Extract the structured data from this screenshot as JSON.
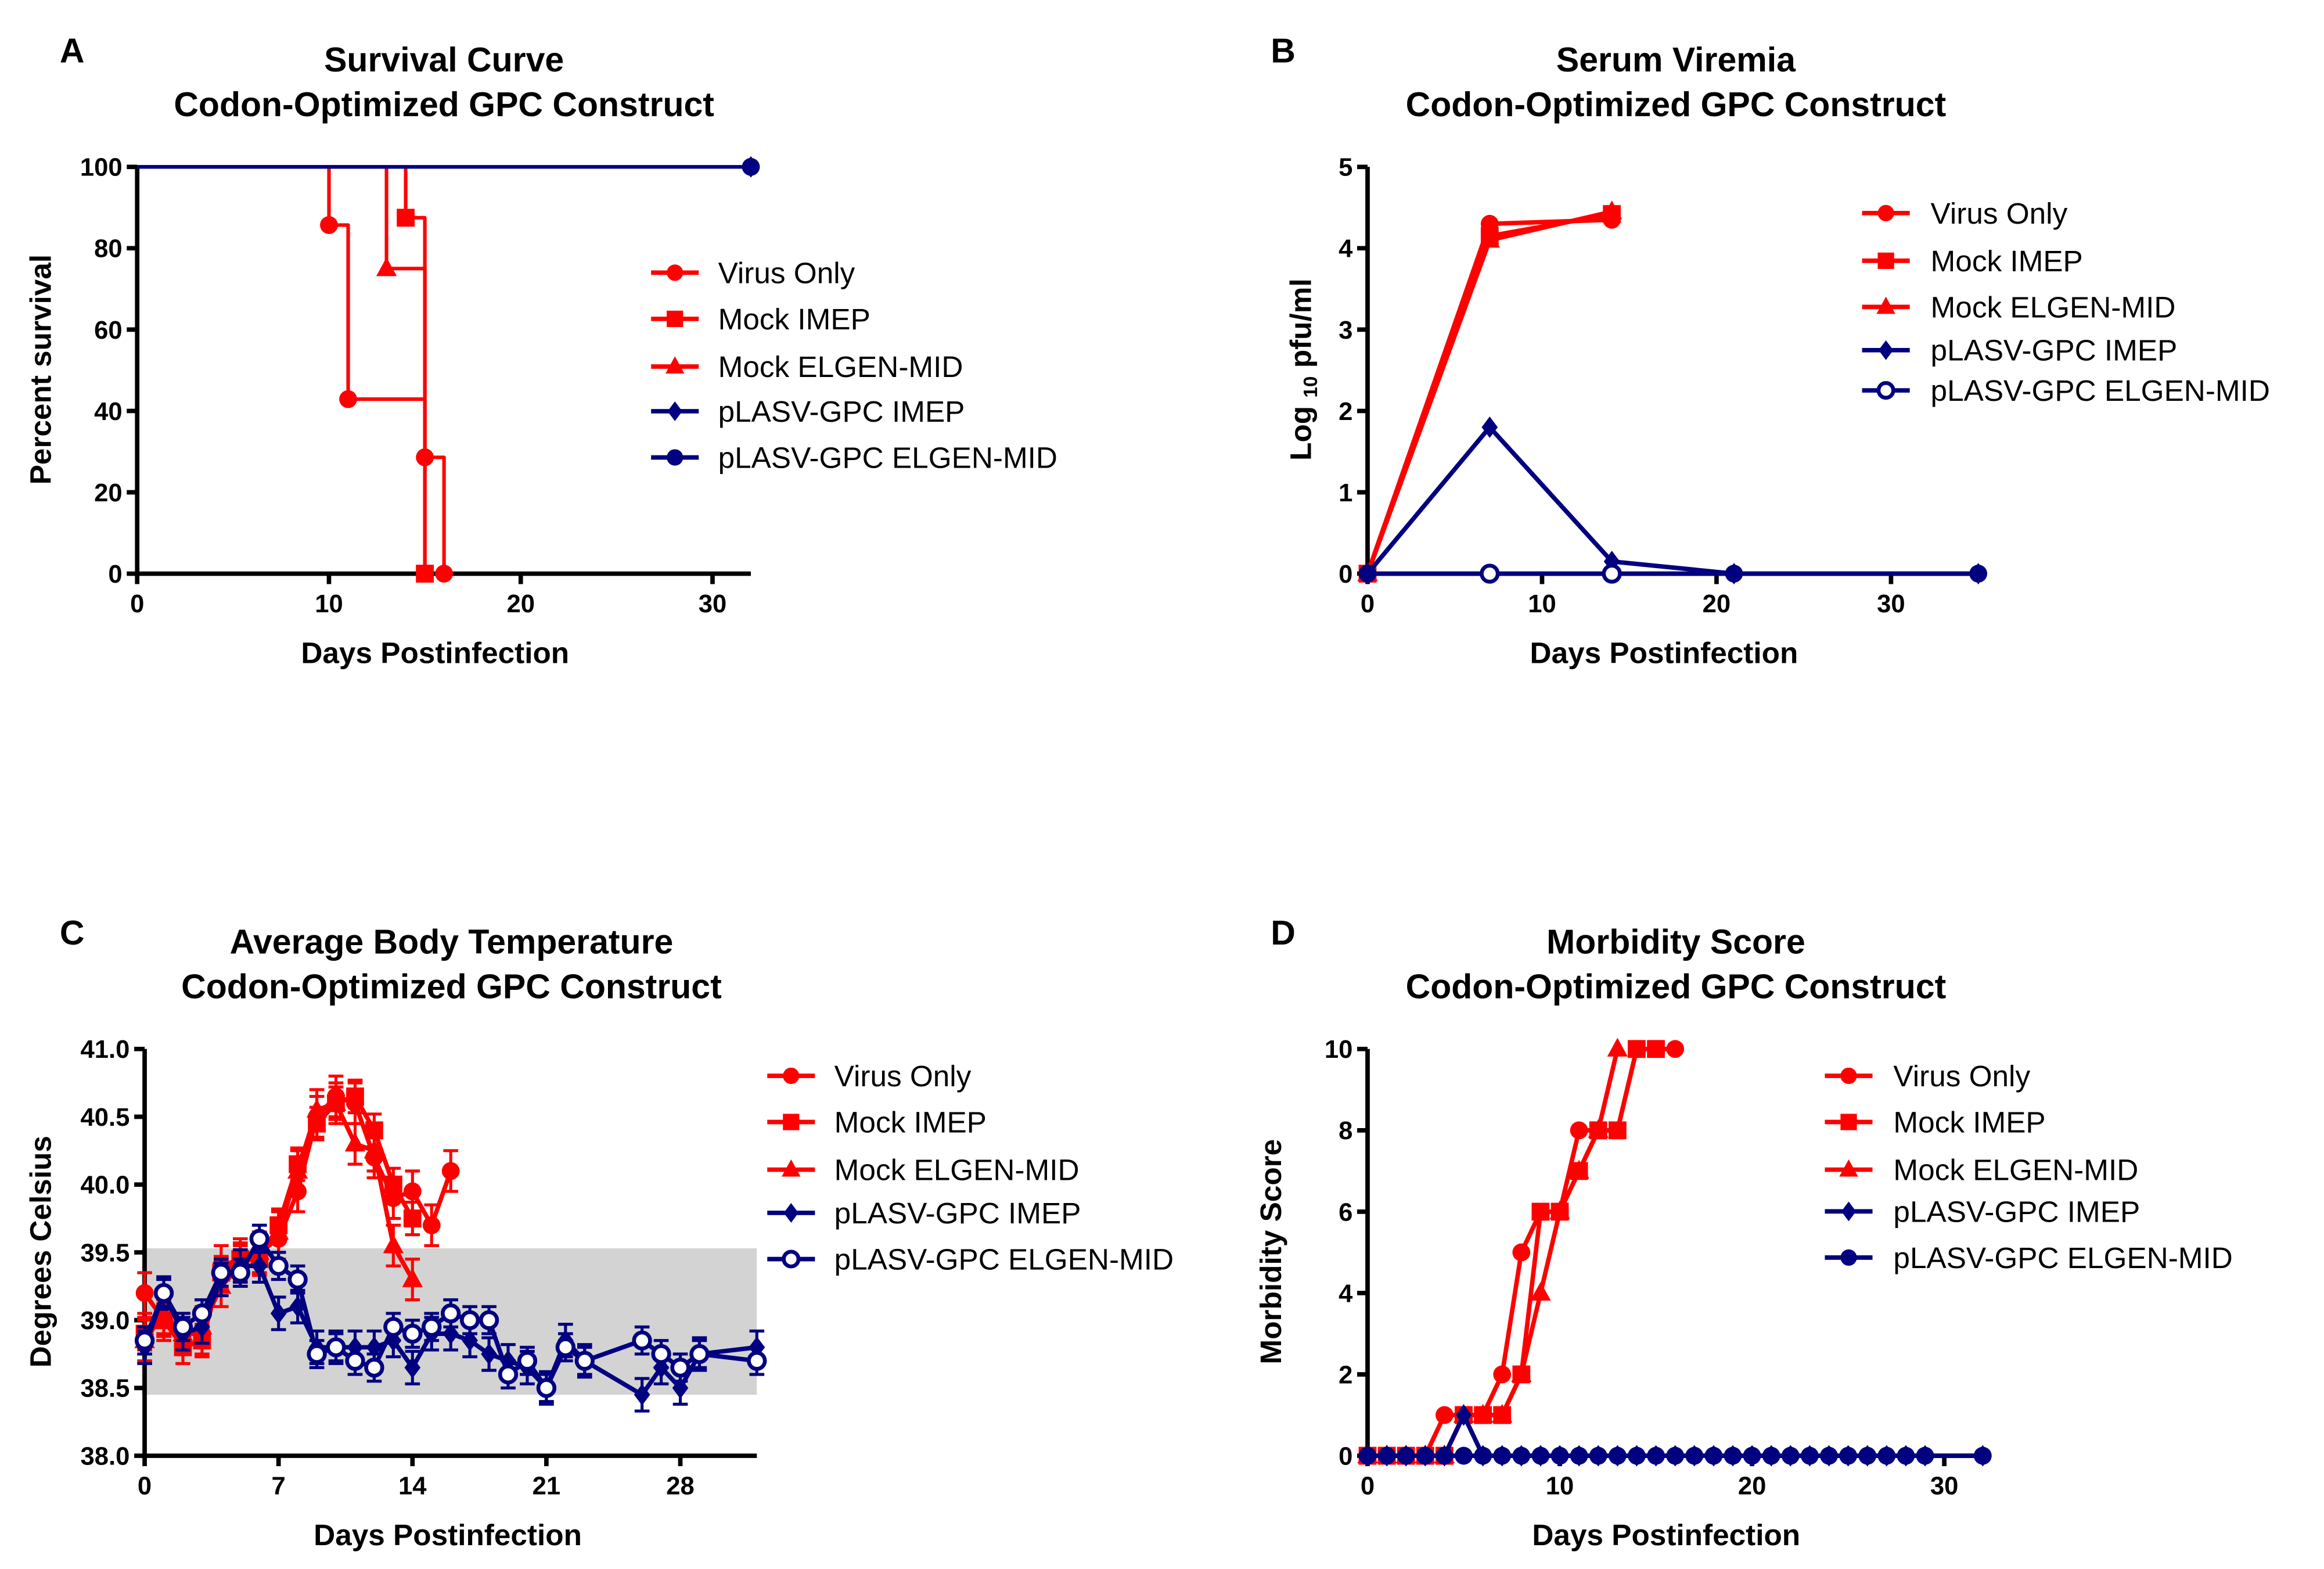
{
  "colors": {
    "red": "#ff0000",
    "navy": "#000080",
    "band": "#d3d3d3",
    "axis": "#000000"
  },
  "legend_labels": [
    "Virus Only",
    "Mock IMEP",
    "Mock ELGEN-MID",
    "pLASV-GPC IMEP",
    "pLASV-GPC ELGEN-MID"
  ],
  "chart_data": [
    {
      "panel": "A",
      "type": "line",
      "step": true,
      "title": [
        "Survival Curve",
        "Codon-Optimized GPC Construct"
      ],
      "xlabel": "Days Postinfection",
      "ylabel": "Percent survival",
      "xlim": [
        0,
        32
      ],
      "ylim": [
        0,
        100
      ],
      "xticks": [
        "0",
        "10",
        "20",
        "30"
      ],
      "xtick_values": [
        0,
        10,
        20,
        30
      ],
      "yticks": [
        "0",
        "20",
        "40",
        "60",
        "80",
        "100"
      ],
      "ytick_values": [
        0,
        20,
        40,
        60,
        80,
        100
      ],
      "legend": "right",
      "series": [
        {
          "name": "Virus Only",
          "color": "#ff0000",
          "marker": "circle",
          "x": [
            0,
            10,
            11,
            15,
            16
          ],
          "y": [
            100,
            85.7,
            42.9,
            28.6,
            0
          ],
          "markers_at": [
            10,
            11,
            15,
            16
          ]
        },
        {
          "name": "Mock IMEP",
          "color": "#ff0000",
          "marker": "square",
          "x": [
            0,
            14,
            15
          ],
          "y": [
            100,
            87.5,
            0
          ],
          "markers_at": [
            14,
            15
          ]
        },
        {
          "name": "Mock ELGEN-MID",
          "color": "#ff0000",
          "marker": "triangle",
          "x": [
            0,
            13,
            15
          ],
          "y": [
            100,
            75,
            0
          ],
          "markers_at": [
            13
          ]
        },
        {
          "name": "pLASV-GPC IMEP",
          "color": "#000080",
          "marker": "diamond",
          "x": [
            0,
            32
          ],
          "y": [
            100,
            100
          ],
          "markers_at": [
            32
          ]
        },
        {
          "name": "pLASV-GPC ELGEN-MID",
          "color": "#000080",
          "marker": "circle",
          "x": [
            0,
            32
          ],
          "y": [
            100,
            100
          ],
          "markers_at": [
            32
          ]
        }
      ]
    },
    {
      "panel": "B",
      "type": "line",
      "title": [
        "Serum Viremia",
        "Codon-Optimized GPC Construct"
      ],
      "xlabel": "Days Postinfection",
      "ylabel": "Log 10 pfu/ml",
      "ylabel_parts": [
        "Log ",
        "10",
        " pfu/ml"
      ],
      "xlim": [
        0,
        35
      ],
      "ylim": [
        0,
        5
      ],
      "xticks": [
        "0",
        "10",
        "20",
        "30"
      ],
      "xtick_values": [
        0,
        10,
        20,
        30
      ],
      "yticks": [
        "0",
        "1",
        "2",
        "3",
        "4",
        "5"
      ],
      "ytick_values": [
        0,
        1,
        2,
        3,
        4,
        5
      ],
      "legend": "top-right",
      "series": [
        {
          "name": "Virus Only",
          "color": "#ff0000",
          "marker": "circle",
          "x": [
            0,
            7,
            14
          ],
          "y": [
            0,
            4.3,
            4.35
          ]
        },
        {
          "name": "Mock IMEP",
          "color": "#ff0000",
          "marker": "square",
          "x": [
            0,
            7,
            14
          ],
          "y": [
            0,
            4.15,
            4.42
          ]
        },
        {
          "name": "Mock ELGEN-MID",
          "color": "#ff0000",
          "marker": "triangle",
          "x": [
            0,
            7,
            14
          ],
          "y": [
            0,
            4.1,
            4.45
          ]
        },
        {
          "name": "pLASV-GPC IMEP",
          "color": "#000080",
          "marker": "diamond",
          "x": [
            0,
            7,
            14,
            21,
            35
          ],
          "y": [
            0,
            1.8,
            0.15,
            0,
            0
          ]
        },
        {
          "name": "pLASV-GPC ELGEN-MID",
          "color": "#000080",
          "marker": "open-circle",
          "x": [
            0,
            7,
            14,
            21,
            35
          ],
          "y": [
            0,
            0,
            0,
            0,
            0
          ],
          "filled_at": [
            0,
            21,
            35
          ]
        }
      ]
    },
    {
      "panel": "C",
      "type": "line",
      "title": [
        "Average Body Temperature",
        "Codon-Optimized GPC Construct"
      ],
      "xlabel": "Days Postinfection",
      "ylabel": "Degrees Celsius",
      "xlim": [
        0,
        32
      ],
      "ylim": [
        38.0,
        41.0
      ],
      "xticks": [
        "0",
        "7",
        "14",
        "21",
        "28"
      ],
      "xtick_values": [
        0,
        7,
        14,
        21,
        28
      ],
      "yticks": [
        "38.0",
        "38.5",
        "39.0",
        "39.5",
        "40.0",
        "40.5",
        "41.0"
      ],
      "ytick_values": [
        38.0,
        38.5,
        39.0,
        39.5,
        40.0,
        40.5,
        41.0
      ],
      "normal_range": [
        38.45,
        39.53
      ],
      "legend": "right",
      "series": [
        {
          "name": "Virus Only",
          "color": "#ff0000",
          "marker": "circle",
          "sem": 0.15,
          "x": [
            0,
            1,
            2,
            3,
            4,
            5,
            6,
            7,
            8,
            9,
            10,
            11,
            12,
            13,
            14,
            15,
            16
          ],
          "y": [
            39.2,
            39.0,
            38.9,
            38.9,
            39.4,
            39.45,
            39.5,
            39.6,
            39.95,
            40.5,
            40.65,
            40.6,
            40.2,
            39.9,
            39.95,
            39.7,
            40.1
          ]
        },
        {
          "name": "Mock IMEP",
          "color": "#ff0000",
          "marker": "square",
          "sem": 0.12,
          "x": [
            0,
            1,
            2,
            3,
            4,
            5,
            6,
            7,
            8,
            9,
            10,
            11,
            12,
            13,
            14
          ],
          "y": [
            38.9,
            39.0,
            38.8,
            38.85,
            39.35,
            39.45,
            39.45,
            39.7,
            40.15,
            40.45,
            40.6,
            40.65,
            40.4,
            40.0,
            39.75
          ]
        },
        {
          "name": "Mock ELGEN-MID",
          "color": "#ff0000",
          "marker": "triangle",
          "sem": 0.15,
          "x": [
            0,
            1,
            2,
            3,
            4,
            5,
            6,
            7,
            8,
            9,
            10,
            11,
            12,
            13,
            14
          ],
          "y": [
            38.85,
            39.05,
            38.9,
            38.95,
            39.25,
            39.4,
            39.5,
            39.65,
            40.1,
            40.55,
            40.6,
            40.3,
            40.25,
            39.55,
            39.3
          ]
        },
        {
          "name": "pLASV-GPC IMEP",
          "color": "#000080",
          "marker": "diamond",
          "sem": 0.12,
          "x": [
            0,
            1,
            2,
            3,
            4,
            5,
            6,
            7,
            8,
            9,
            10,
            11,
            12,
            13,
            14,
            15,
            16,
            17,
            18,
            19,
            20,
            21,
            22,
            23,
            26,
            27,
            28,
            29,
            32
          ],
          "y": [
            38.8,
            39.2,
            38.9,
            38.95,
            39.3,
            39.4,
            39.4,
            39.05,
            39.1,
            38.8,
            38.8,
            38.8,
            38.8,
            38.85,
            38.65,
            38.9,
            38.9,
            38.85,
            38.75,
            38.7,
            38.65,
            38.5,
            38.85,
            38.7,
            38.45,
            38.65,
            38.5,
            38.75,
            38.8
          ]
        },
        {
          "name": "pLASV-GPC ELGEN-MID",
          "color": "#000080",
          "marker": "open-circle",
          "sem": 0.1,
          "x": [
            0,
            1,
            2,
            3,
            4,
            5,
            6,
            7,
            8,
            9,
            10,
            11,
            12,
            13,
            14,
            15,
            16,
            17,
            18,
            19,
            20,
            21,
            22,
            23,
            26,
            27,
            28,
            29,
            32
          ],
          "y": [
            38.85,
            39.2,
            38.95,
            39.05,
            39.35,
            39.35,
            39.6,
            39.4,
            39.3,
            38.75,
            38.8,
            38.7,
            38.65,
            38.95,
            38.9,
            38.95,
            39.05,
            39.0,
            39.0,
            38.6,
            38.7,
            38.5,
            38.8,
            38.7,
            38.85,
            38.75,
            38.65,
            38.75,
            38.7
          ]
        }
      ]
    },
    {
      "panel": "D",
      "type": "line",
      "title": [
        "Morbidity Score",
        "Codon-Optimized GPC Construct"
      ],
      "xlabel": "Days Postinfection",
      "ylabel": "Morbidity Score",
      "xlim": [
        0,
        32
      ],
      "ylim": [
        0,
        10
      ],
      "xticks": [
        "0",
        "10",
        "20",
        "30"
      ],
      "xtick_values": [
        0,
        10,
        20,
        30
      ],
      "yticks": [
        "0",
        "2",
        "4",
        "6",
        "8",
        "10"
      ],
      "ytick_values": [
        0,
        2,
        4,
        6,
        8,
        10
      ],
      "legend": "right",
      "series": [
        {
          "name": "Virus Only",
          "color": "#ff0000",
          "marker": "circle",
          "x": [
            0,
            1,
            2,
            3,
            4,
            5,
            6,
            7,
            8,
            9,
            10,
            11,
            12,
            13,
            14,
            15,
            16
          ],
          "y": [
            0,
            0,
            0,
            0,
            1,
            1,
            1,
            2,
            5,
            6,
            6,
            8,
            8,
            8,
            10,
            10,
            10
          ]
        },
        {
          "name": "Mock IMEP",
          "color": "#ff0000",
          "marker": "square",
          "x": [
            0,
            1,
            2,
            3,
            4,
            5,
            6,
            7,
            8,
            9,
            10,
            11,
            12,
            13,
            14,
            15
          ],
          "y": [
            0,
            0,
            0,
            0,
            0,
            1,
            1,
            1,
            2,
            6,
            6,
            7,
            8,
            8,
            10,
            10
          ]
        },
        {
          "name": "Mock ELGEN-MID",
          "color": "#ff0000",
          "marker": "triangle",
          "x": [
            0,
            1,
            2,
            3,
            4,
            5,
            6,
            7,
            8,
            9,
            10,
            11,
            12,
            13
          ],
          "y": [
            0,
            0,
            0,
            0,
            0,
            1,
            1,
            1,
            2,
            4,
            6,
            7,
            8,
            10
          ]
        },
        {
          "name": "pLASV-GPC IMEP",
          "color": "#000080",
          "marker": "diamond",
          "x": [
            0,
            1,
            2,
            3,
            4,
            5,
            6,
            7,
            8,
            9,
            10,
            11,
            12,
            13,
            14,
            15,
            16,
            17,
            18,
            19,
            20,
            21,
            22,
            23,
            24,
            25,
            26,
            27,
            28,
            29,
            32
          ],
          "y": [
            0,
            0,
            0,
            0,
            0,
            1,
            0,
            0,
            0,
            0,
            0,
            0,
            0,
            0,
            0,
            0,
            0,
            0,
            0,
            0,
            0,
            0,
            0,
            0,
            0,
            0,
            0,
            0,
            0,
            0,
            0
          ]
        },
        {
          "name": "pLASV-GPC ELGEN-MID",
          "color": "#000080",
          "marker": "circle",
          "x": [
            0,
            1,
            2,
            3,
            4,
            5,
            6,
            7,
            8,
            9,
            10,
            11,
            12,
            13,
            14,
            15,
            16,
            17,
            18,
            19,
            20,
            21,
            22,
            23,
            24,
            25,
            26,
            27,
            28,
            29,
            32
          ],
          "y": [
            0,
            0,
            0,
            0,
            0,
            0,
            0,
            0,
            0,
            0,
            0,
            0,
            0,
            0,
            0,
            0,
            0,
            0,
            0,
            0,
            0,
            0,
            0,
            0,
            0,
            0,
            0,
            0,
            0,
            0,
            0
          ]
        }
      ]
    }
  ]
}
